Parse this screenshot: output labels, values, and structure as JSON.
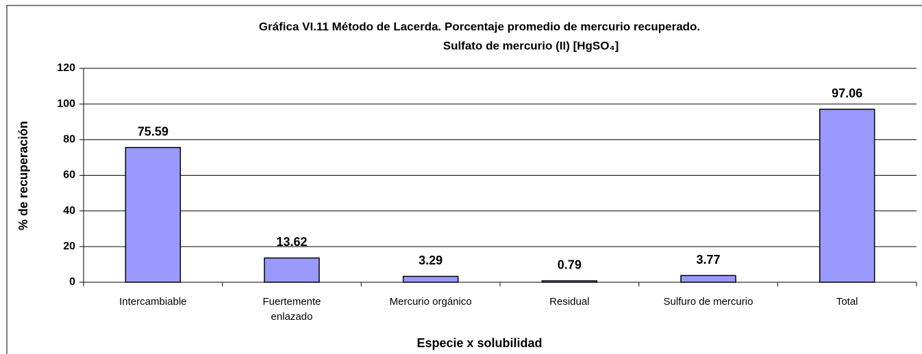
{
  "chart_data": {
    "type": "bar",
    "title": "Gráfica VI.11 Método de Lacerda.  Porcentaje promedio de mercurio recuperado.",
    "subtitle": "Sulfato de mercurio (II) [HgSO₄]",
    "x_label": "Especie x solubilidad",
    "y_label": "% de recuperación",
    "categories": [
      "Intercambiable",
      "Fuertemente enlazado",
      "Mercurio orgánico",
      "Residual",
      "Sulfuro de mercurio",
      "Total"
    ],
    "values": [
      75.59,
      13.62,
      3.29,
      0.79,
      3.77,
      97.06
    ],
    "color": "#9999ff",
    "ylim": [
      0,
      120
    ],
    "yticks": [
      0,
      20,
      40,
      60,
      80,
      100,
      120
    ],
    "grid": true
  }
}
